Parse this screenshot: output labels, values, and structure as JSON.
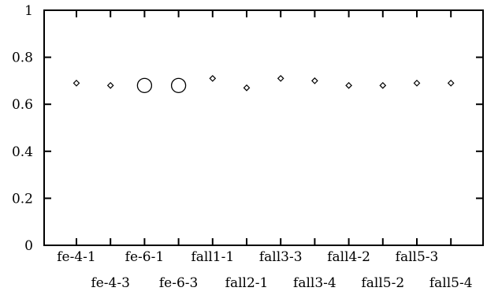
{
  "chart_data": {
    "type": "scatter",
    "title": "",
    "xlabel": "",
    "ylabel": "",
    "ylim": [
      0,
      1
    ],
    "yticks": [
      "0",
      "0.2",
      "0.4",
      "0.6",
      "0.8",
      "1"
    ],
    "ytick_values": [
      0,
      0.2,
      0.4,
      0.6,
      0.8,
      1
    ],
    "grid": false,
    "legend": "none",
    "categories": [
      "fe-4-1",
      "fe-4-3",
      "fe-6-1",
      "fe-6-3",
      "fall1-1",
      "fall2-1",
      "fall3-3",
      "fall3-4",
      "fall4-2",
      "fall5-2",
      "fall5-3",
      "fall5-4"
    ],
    "series": [
      {
        "marker": "diamond",
        "points": [
          {
            "x": "fe-4-1",
            "y": 0.69
          },
          {
            "x": "fe-4-3",
            "y": 0.68
          },
          {
            "x": "fall1-1",
            "y": 0.71
          },
          {
            "x": "fall2-1",
            "y": 0.67
          },
          {
            "x": "fall3-3",
            "y": 0.71
          },
          {
            "x": "fall3-4",
            "y": 0.7
          },
          {
            "x": "fall4-2",
            "y": 0.68
          },
          {
            "x": "fall5-2",
            "y": 0.68
          },
          {
            "x": "fall5-3",
            "y": 0.69
          },
          {
            "x": "fall5-4",
            "y": 0.69
          }
        ]
      },
      {
        "marker": "circle",
        "points": [
          {
            "x": "fe-6-1",
            "y": 0.68
          },
          {
            "x": "fe-6-3",
            "y": 0.68
          }
        ]
      }
    ]
  }
}
